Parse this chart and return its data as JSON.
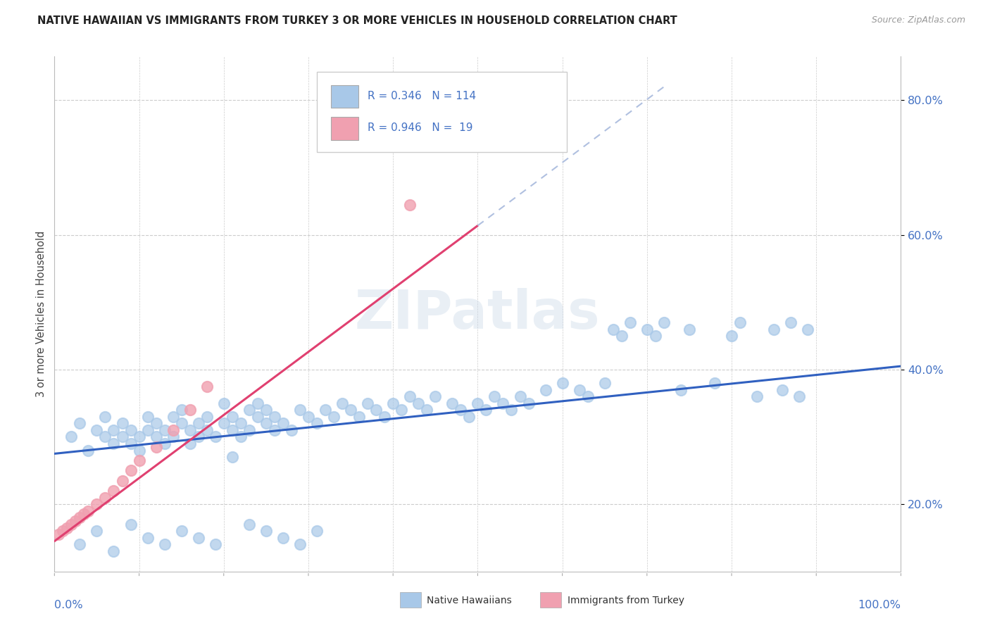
{
  "title": "NATIVE HAWAIIAN VS IMMIGRANTS FROM TURKEY 3 OR MORE VEHICLES IN HOUSEHOLD CORRELATION CHART",
  "source": "Source: ZipAtlas.com",
  "ylabel": "3 or more Vehicles in Household",
  "series1_color": "#A8C8E8",
  "series2_color": "#F0A0B0",
  "line1_color": "#3060C0",
  "line2_color": "#E04070",
  "line1_dash_color": "#B0C0E0",
  "watermark": "ZIPatlas",
  "xlim": [
    0.0,
    1.0
  ],
  "ylim": [
    0.1,
    0.865
  ],
  "yticks": [
    0.2,
    0.4,
    0.6,
    0.8
  ],
  "ytick_labels": [
    "20.0%",
    "40.0%",
    "60.0%",
    "80.0%"
  ],
  "blue_line_x0": 0.0,
  "blue_line_y0": 0.275,
  "blue_line_x1": 1.0,
  "blue_line_y1": 0.405,
  "pink_line_x0": 0.0,
  "pink_line_y0": 0.145,
  "pink_line_x1": 0.72,
  "pink_line_y1": 0.82,
  "nh_x": [
    0.02,
    0.03,
    0.04,
    0.05,
    0.06,
    0.06,
    0.07,
    0.07,
    0.08,
    0.08,
    0.09,
    0.09,
    0.1,
    0.1,
    0.11,
    0.11,
    0.12,
    0.12,
    0.13,
    0.13,
    0.14,
    0.14,
    0.15,
    0.15,
    0.16,
    0.16,
    0.17,
    0.17,
    0.18,
    0.18,
    0.19,
    0.2,
    0.2,
    0.21,
    0.21,
    0.22,
    0.22,
    0.23,
    0.23,
    0.24,
    0.24,
    0.25,
    0.25,
    0.26,
    0.26,
    0.27,
    0.28,
    0.29,
    0.3,
    0.31,
    0.32,
    0.33,
    0.34,
    0.35,
    0.36,
    0.37,
    0.38,
    0.39,
    0.4,
    0.41,
    0.42,
    0.43,
    0.44,
    0.45,
    0.47,
    0.48,
    0.49,
    0.5,
    0.51,
    0.52,
    0.53,
    0.54,
    0.55,
    0.56,
    0.58,
    0.6,
    0.62,
    0.63,
    0.65,
    0.66,
    0.67,
    0.68,
    0.7,
    0.71,
    0.72,
    0.74,
    0.75,
    0.78,
    0.8,
    0.81,
    0.83,
    0.85,
    0.86,
    0.87,
    0.88,
    0.89,
    0.03,
    0.05,
    0.07,
    0.09,
    0.11,
    0.13,
    0.15,
    0.17,
    0.19,
    0.21,
    0.23,
    0.25,
    0.27,
    0.29,
    0.31
  ],
  "nh_y": [
    0.3,
    0.32,
    0.28,
    0.31,
    0.3,
    0.33,
    0.29,
    0.31,
    0.3,
    0.32,
    0.29,
    0.31,
    0.3,
    0.28,
    0.31,
    0.33,
    0.3,
    0.32,
    0.29,
    0.31,
    0.3,
    0.33,
    0.32,
    0.34,
    0.31,
    0.29,
    0.3,
    0.32,
    0.31,
    0.33,
    0.3,
    0.32,
    0.35,
    0.31,
    0.33,
    0.3,
    0.32,
    0.31,
    0.34,
    0.33,
    0.35,
    0.32,
    0.34,
    0.31,
    0.33,
    0.32,
    0.31,
    0.34,
    0.33,
    0.32,
    0.34,
    0.33,
    0.35,
    0.34,
    0.33,
    0.35,
    0.34,
    0.33,
    0.35,
    0.34,
    0.36,
    0.35,
    0.34,
    0.36,
    0.35,
    0.34,
    0.33,
    0.35,
    0.34,
    0.36,
    0.35,
    0.34,
    0.36,
    0.35,
    0.37,
    0.38,
    0.37,
    0.36,
    0.38,
    0.46,
    0.45,
    0.47,
    0.46,
    0.45,
    0.47,
    0.37,
    0.46,
    0.38,
    0.45,
    0.47,
    0.36,
    0.46,
    0.37,
    0.47,
    0.36,
    0.46,
    0.14,
    0.16,
    0.13,
    0.17,
    0.15,
    0.14,
    0.16,
    0.15,
    0.14,
    0.27,
    0.17,
    0.16,
    0.15,
    0.14,
    0.16
  ],
  "tk_x": [
    0.005,
    0.01,
    0.015,
    0.02,
    0.025,
    0.03,
    0.035,
    0.04,
    0.05,
    0.06,
    0.07,
    0.08,
    0.09,
    0.1,
    0.12,
    0.14,
    0.16,
    0.18,
    0.42
  ],
  "tk_y": [
    0.155,
    0.16,
    0.165,
    0.17,
    0.175,
    0.18,
    0.185,
    0.19,
    0.2,
    0.21,
    0.22,
    0.235,
    0.25,
    0.265,
    0.285,
    0.31,
    0.34,
    0.375,
    0.645
  ]
}
